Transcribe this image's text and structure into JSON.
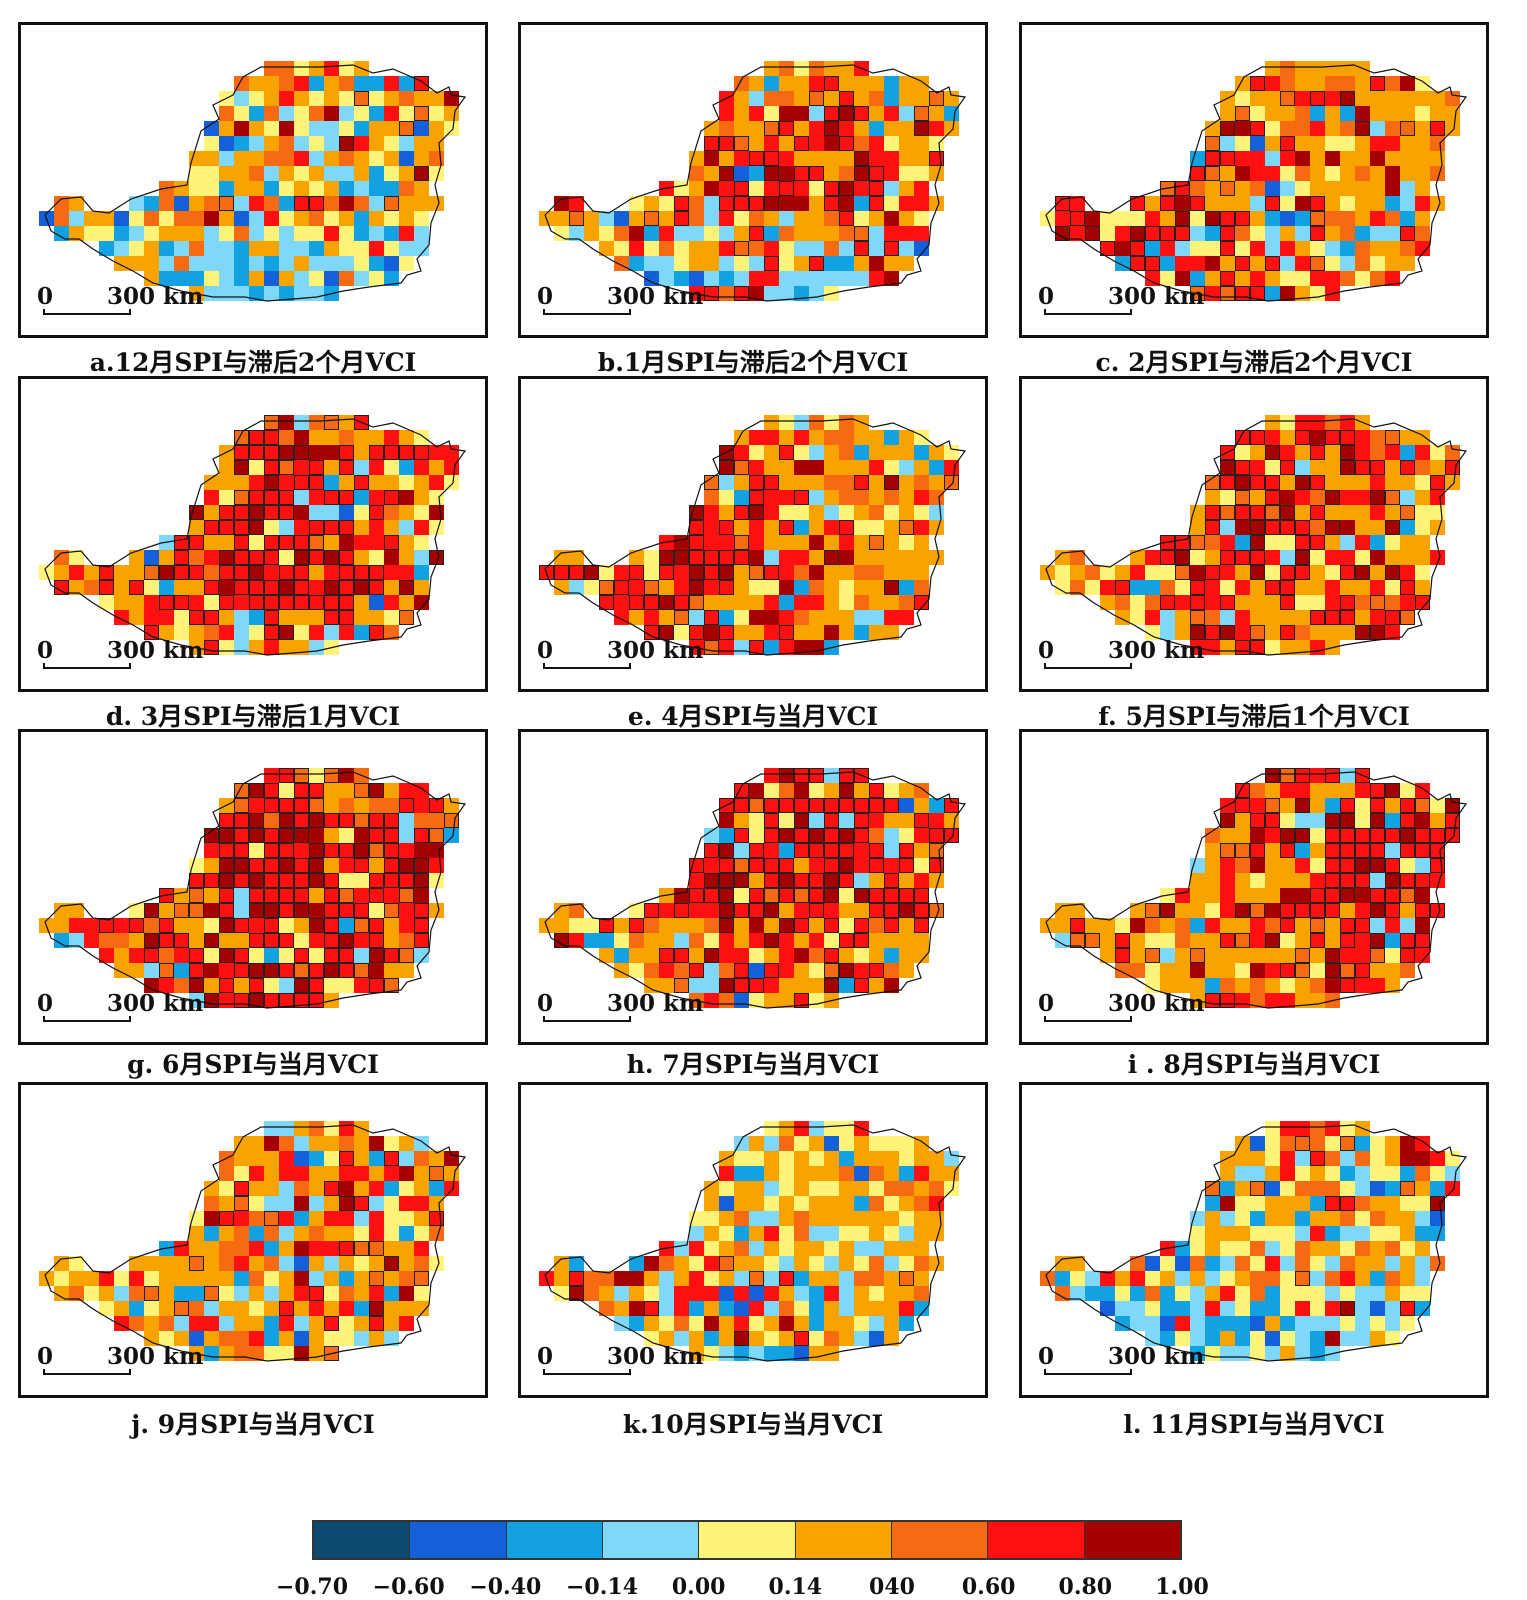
{
  "panels": [
    {
      "id": "a",
      "caption": "a.12月SPI与滞后2个月VCI",
      "scale_zero": "0",
      "scale_distance": "300 km",
      "pattern": {
        "strong": 0.12,
        "moderate": 0.45,
        "neutral": 0.22,
        "negative": 0.21,
        "significant": 0.15,
        "focus": "northeast"
      }
    },
    {
      "id": "b",
      "caption": "b.1月SPI与滞后2个月VCI",
      "scale_zero": "0",
      "scale_distance": "300 km",
      "pattern": {
        "strong": 0.28,
        "moderate": 0.45,
        "neutral": 0.12,
        "negative": 0.15,
        "significant": 0.35,
        "focus": "center"
      }
    },
    {
      "id": "c",
      "caption": "c. 2月SPI与滞后2个月VCI",
      "scale_zero": "0",
      "scale_distance": "300 km",
      "pattern": {
        "strong": 0.38,
        "moderate": 0.42,
        "neutral": 0.1,
        "negative": 0.1,
        "significant": 0.5,
        "focus": "west"
      }
    },
    {
      "id": "d",
      "caption": "d. 3月SPI与滞后1月VCI",
      "scale_zero": "0",
      "scale_distance": "300 km",
      "pattern": {
        "strong": 0.45,
        "moderate": 0.38,
        "neutral": 0.09,
        "negative": 0.08,
        "significant": 0.6,
        "focus": "center"
      }
    },
    {
      "id": "e",
      "caption": "e. 4月SPI与当月VCI",
      "scale_zero": "0",
      "scale_distance": "300 km",
      "pattern": {
        "strong": 0.4,
        "moderate": 0.42,
        "neutral": 0.1,
        "negative": 0.08,
        "significant": 0.55,
        "focus": "west"
      }
    },
    {
      "id": "f",
      "caption": "f. 5月SPI与滞后1个月VCI",
      "scale_zero": "0",
      "scale_distance": "300 km",
      "pattern": {
        "strong": 0.42,
        "moderate": 0.4,
        "neutral": 0.13,
        "negative": 0.05,
        "significant": 0.55,
        "focus": "center"
      }
    },
    {
      "id": "g",
      "caption": "g. 6月SPI与当月VCI",
      "scale_zero": "0",
      "scale_distance": "300 km",
      "pattern": {
        "strong": 0.55,
        "moderate": 0.33,
        "neutral": 0.08,
        "negative": 0.04,
        "significant": 0.7,
        "focus": "center"
      }
    },
    {
      "id": "h",
      "caption": "h. 7月SPI与当月VCI",
      "scale_zero": "0",
      "scale_distance": "300 km",
      "pattern": {
        "strong": 0.55,
        "moderate": 0.33,
        "neutral": 0.07,
        "negative": 0.05,
        "significant": 0.7,
        "focus": "north"
      }
    },
    {
      "id": "i",
      "caption": "i . 8月SPI与当月VCI",
      "scale_zero": "0",
      "scale_distance": "300 km",
      "pattern": {
        "strong": 0.5,
        "moderate": 0.35,
        "neutral": 0.09,
        "negative": 0.06,
        "significant": 0.65,
        "focus": "northeast"
      }
    },
    {
      "id": "j",
      "caption": "j. 9月SPI与当月VCI",
      "scale_zero": "0",
      "scale_distance": "300 km",
      "pattern": {
        "strong": 0.25,
        "moderate": 0.5,
        "neutral": 0.13,
        "negative": 0.12,
        "significant": 0.3,
        "focus": "northeast"
      }
    },
    {
      "id": "k",
      "caption": "k.10月SPI与当月VCI",
      "scale_zero": "0",
      "scale_distance": "300 km",
      "pattern": {
        "strong": 0.15,
        "moderate": 0.5,
        "neutral": 0.2,
        "negative": 0.15,
        "significant": 0.15,
        "focus": "west"
      }
    },
    {
      "id": "l",
      "caption": "l. 11月SPI与当月VCI",
      "scale_zero": "0",
      "scale_distance": "300 km",
      "pattern": {
        "strong": 0.12,
        "moderate": 0.42,
        "neutral": 0.2,
        "negative": 0.26,
        "significant": 0.12,
        "focus": "northeast"
      }
    }
  ],
  "legend": {
    "colors": [
      "#0b4a6e",
      "#1460d8",
      "#12a2e2",
      "#7fd8f8",
      "#fff47a",
      "#f8a300",
      "#f66a12",
      "#ff1010",
      "#a50000"
    ],
    "labels": [
      "−0.70",
      "−0.60",
      "−0.40",
      "−0.14",
      "0.00",
      "0.14",
      "040",
      "0.60",
      "0.80",
      "1.00"
    ]
  },
  "colors": {
    "cell_border": "#222222",
    "outline": "#111111"
  }
}
